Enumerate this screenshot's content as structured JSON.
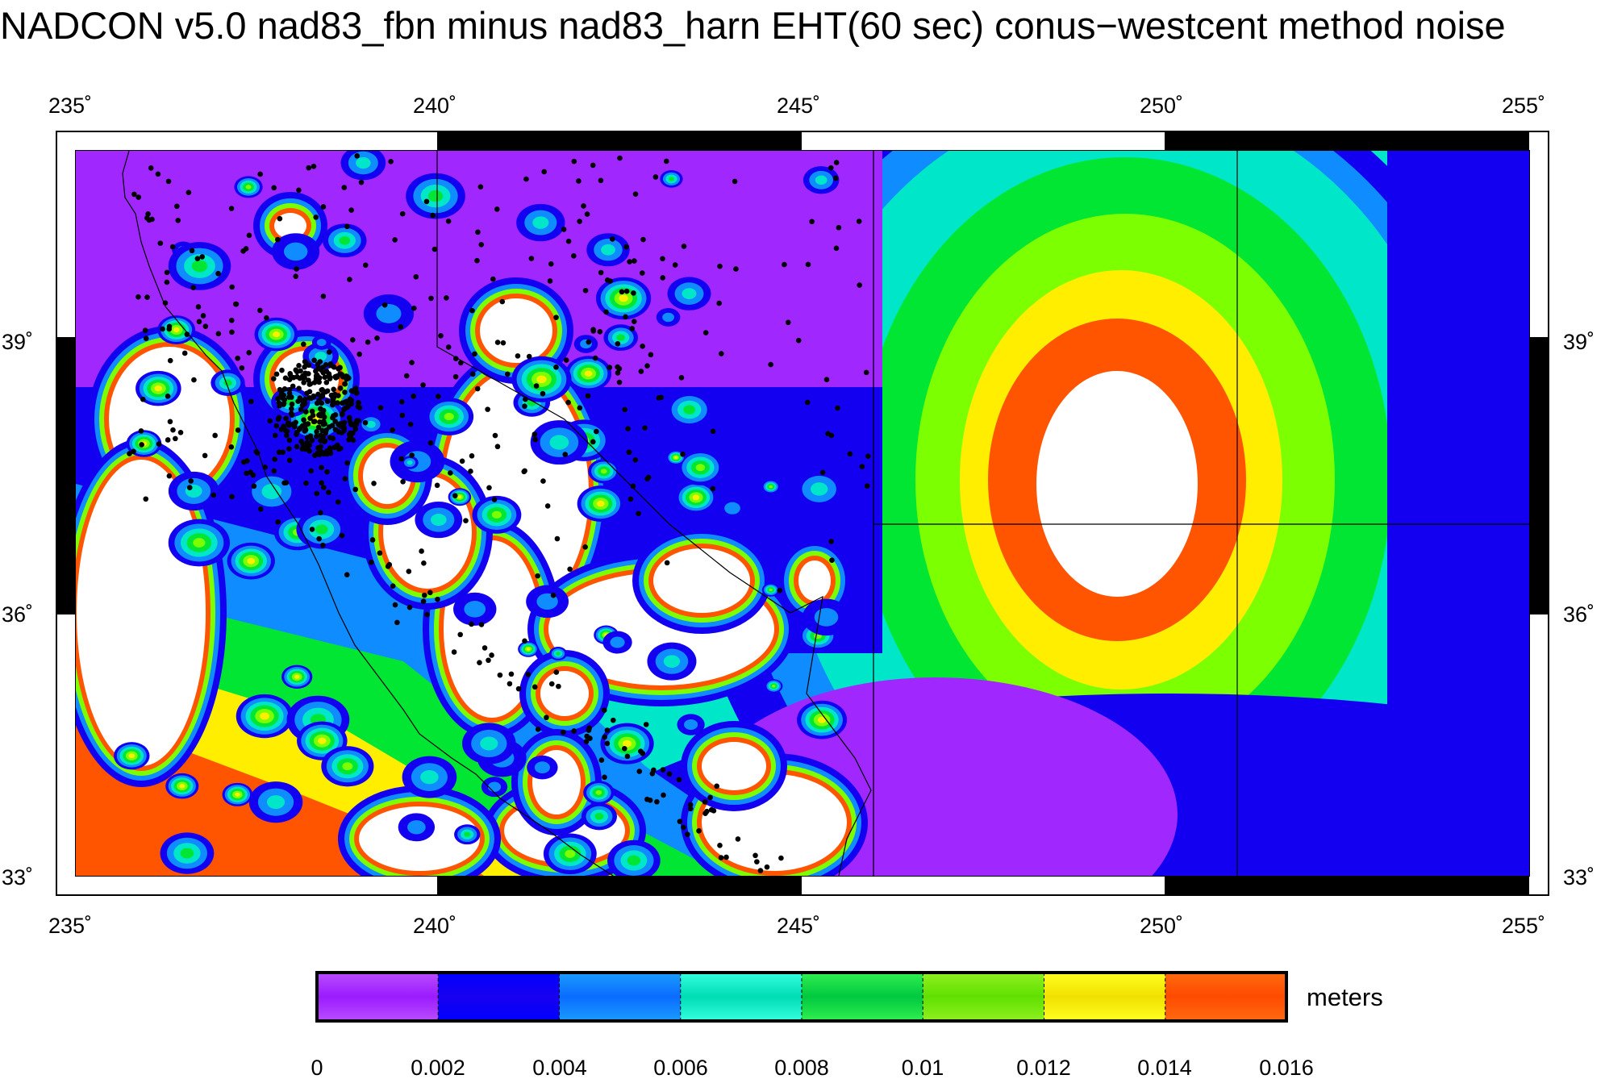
{
  "title": "NADCON v5.0 nad83_fbn minus nad83_harn EHT(60 sec) conus−westcent method noise",
  "map": {
    "region": "conus-westcent",
    "lon_ticks": [
      "235˚",
      "240˚",
      "245˚",
      "250˚",
      "255˚"
    ],
    "lat_ticks": [
      "39˚",
      "36˚",
      "33˚"
    ],
    "lon_range": [
      235,
      255
    ],
    "lat_range": [
      33,
      41
    ],
    "symbol_color": "#000000",
    "coastline_color": "#000000"
  },
  "colorbar": {
    "unit": "meters",
    "tick_labels": [
      "0",
      "0.002",
      "0.004",
      "0.006",
      "0.008",
      "0.01",
      "0.012",
      "0.014",
      "0.016"
    ],
    "range": [
      0,
      0.016
    ],
    "colors": [
      [
        "#9a1cff",
        "#bb4cff"
      ],
      [
        "#1800f0",
        "#0000ff"
      ],
      [
        "#0a6cff",
        "#1a9cff"
      ],
      [
        "#00dcb4",
        "#34ffe0"
      ],
      [
        "#00c840",
        "#30f050"
      ],
      [
        "#60e000",
        "#90f020"
      ],
      [
        "#f0e000",
        "#ffff20"
      ],
      [
        "#ff4a00",
        "#ff6a10"
      ]
    ]
  },
  "palette": {
    "white": "#ffffff",
    "red": "#ff5400",
    "yellow": "#ffee00",
    "lime": "#7cff00",
    "green": "#00e632",
    "cyan": "#00e6c8",
    "lightblue": "#0f8cff",
    "blue": "#1400f0",
    "purple": "#a028ff"
  }
}
